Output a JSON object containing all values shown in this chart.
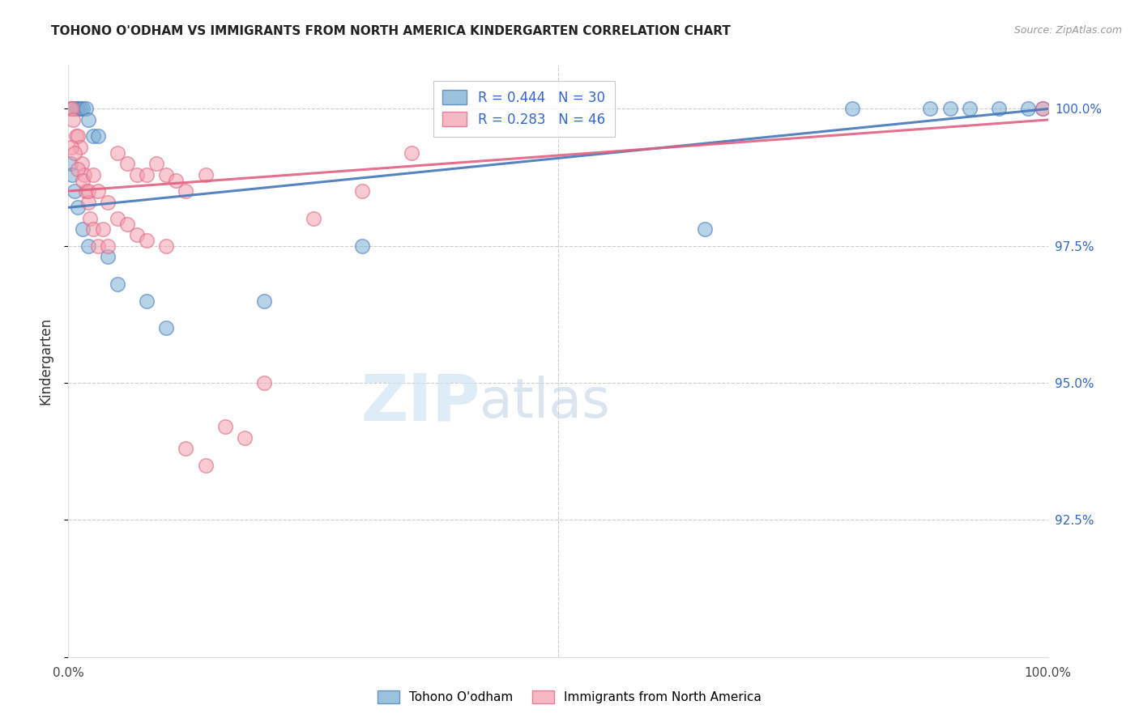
{
  "title": "TOHONO O'ODHAM VS IMMIGRANTS FROM NORTH AMERICA KINDERGARTEN CORRELATION CHART",
  "source": "Source: ZipAtlas.com",
  "ylabel": "Kindergarten",
  "xlim": [
    0,
    100
  ],
  "ylim": [
    90.0,
    100.8
  ],
  "yticks": [
    90.0,
    92.5,
    95.0,
    97.5,
    100.0
  ],
  "ytick_labels": [
    "",
    "92.5%",
    "95.0%",
    "97.5%",
    "100.0%"
  ],
  "legend_blue_label": "Tohono O'odham",
  "legend_pink_label": "Immigrants from North America",
  "R_blue": 0.444,
  "N_blue": 30,
  "R_pink": 0.283,
  "N_pink": 46,
  "blue_color": "#7BAFD4",
  "pink_color": "#F4A0B0",
  "blue_line_color": "#4477BB",
  "pink_line_color": "#E06080",
  "watermark_zip": "ZIP",
  "watermark_atlas": "atlas",
  "blue_scatter_x": [
    0.3,
    0.5,
    0.8,
    1.0,
    1.2,
    1.5,
    1.8,
    2.0,
    2.5,
    3.0,
    0.2,
    0.4,
    0.6,
    1.0,
    1.5,
    2.0,
    4.0,
    5.0,
    8.0,
    10.0,
    20.0,
    30.0,
    65.0,
    80.0,
    88.0,
    90.0,
    92.0,
    95.0,
    98.0,
    99.5
  ],
  "blue_scatter_y": [
    100.0,
    100.0,
    100.0,
    100.0,
    100.0,
    100.0,
    100.0,
    99.8,
    99.5,
    99.5,
    99.0,
    98.8,
    98.5,
    98.2,
    97.8,
    97.5,
    97.3,
    96.8,
    96.5,
    96.0,
    96.5,
    97.5,
    97.8,
    100.0,
    100.0,
    100.0,
    100.0,
    100.0,
    100.0,
    100.0
  ],
  "pink_scatter_x": [
    0.2,
    0.4,
    0.5,
    0.8,
    1.0,
    1.2,
    1.4,
    1.6,
    1.8,
    2.0,
    2.2,
    2.5,
    3.0,
    3.5,
    4.0,
    5.0,
    6.0,
    7.0,
    8.0,
    9.0,
    10.0,
    11.0,
    12.0,
    14.0,
    0.3,
    0.6,
    1.0,
    1.5,
    2.0,
    2.5,
    3.0,
    4.0,
    5.0,
    6.0,
    7.0,
    8.0,
    10.0,
    12.0,
    14.0,
    16.0,
    18.0,
    20.0,
    25.0,
    30.0,
    35.0,
    99.5
  ],
  "pink_scatter_y": [
    100.0,
    100.0,
    99.8,
    99.5,
    99.5,
    99.3,
    99.0,
    98.8,
    98.5,
    98.3,
    98.0,
    97.8,
    97.5,
    97.8,
    97.5,
    99.2,
    99.0,
    98.8,
    98.8,
    99.0,
    98.8,
    98.7,
    98.5,
    98.8,
    99.3,
    99.2,
    98.9,
    98.7,
    98.5,
    98.8,
    98.5,
    98.3,
    98.0,
    97.9,
    97.7,
    97.6,
    97.5,
    93.8,
    93.5,
    94.2,
    94.0,
    95.0,
    98.0,
    98.5,
    99.2,
    100.0
  ],
  "trendline_blue_x0": 98.2,
  "trendline_blue_x100": 100.0,
  "trendline_pink_x0": 98.5,
  "trendline_pink_x100": 99.8
}
